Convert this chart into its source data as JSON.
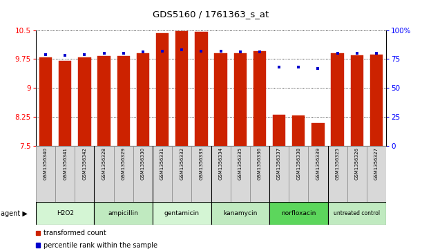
{
  "title": "GDS5160 / 1761363_s_at",
  "samples": [
    "GSM1356340",
    "GSM1356341",
    "GSM1356342",
    "GSM1356328",
    "GSM1356329",
    "GSM1356330",
    "GSM1356331",
    "GSM1356332",
    "GSM1356333",
    "GSM1356334",
    "GSM1356335",
    "GSM1356336",
    "GSM1356337",
    "GSM1356338",
    "GSM1356339",
    "GSM1356325",
    "GSM1356326",
    "GSM1356327"
  ],
  "bar_values": [
    9.8,
    9.7,
    9.8,
    9.82,
    9.82,
    9.9,
    10.42,
    10.48,
    10.45,
    9.9,
    9.9,
    9.95,
    8.3,
    8.28,
    8.08,
    9.9,
    9.85,
    9.87
  ],
  "percentile_values": [
    79,
    78,
    79,
    80,
    80,
    81,
    82,
    83,
    82,
    82,
    81,
    81,
    68,
    68,
    67,
    80,
    80,
    80
  ],
  "groups": [
    {
      "label": "H2O2",
      "start": 0,
      "end": 3,
      "color": "#d4f5d4"
    },
    {
      "label": "ampicillin",
      "start": 3,
      "end": 6,
      "color": "#c0eac0"
    },
    {
      "label": "gentamicin",
      "start": 6,
      "end": 9,
      "color": "#d4f5d4"
    },
    {
      "label": "kanamycin",
      "start": 9,
      "end": 12,
      "color": "#c0eac0"
    },
    {
      "label": "norfloxacin",
      "start": 12,
      "end": 15,
      "color": "#5cd65c"
    },
    {
      "label": "untreated control",
      "start": 15,
      "end": 18,
      "color": "#c0eac0"
    }
  ],
  "ymin": 7.5,
  "ymax": 10.5,
  "yticks_left": [
    7.5,
    8.25,
    9.0,
    9.75,
    10.5
  ],
  "ytick_labels_left": [
    "7.5",
    "8.25",
    "9",
    "9.75",
    "10.5"
  ],
  "yticks_right": [
    0,
    25,
    50,
    75,
    100
  ],
  "ytick_labels_right": [
    "0",
    "25",
    "50",
    "75",
    "100%"
  ],
  "bar_color": "#cc2200",
  "dot_color": "#0000cc",
  "bar_width": 0.65,
  "legend_items": [
    "transformed count",
    "percentile rank within the sample"
  ],
  "legend_colors": [
    "#cc2200",
    "#0000cc"
  ]
}
